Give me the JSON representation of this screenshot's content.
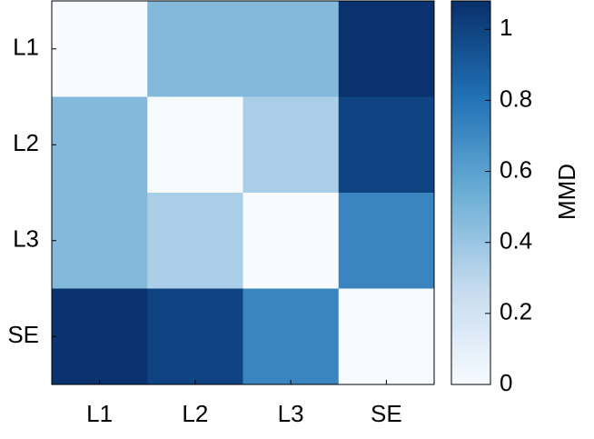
{
  "chart_data": {
    "type": "heatmap",
    "x_categories": [
      "L1",
      "L2",
      "L3",
      "SE"
    ],
    "y_categories": [
      "L1",
      "L2",
      "L3",
      "SE"
    ],
    "values": [
      [
        0,
        0.47,
        0.47,
        1.07
      ],
      [
        0.47,
        0,
        0.35,
        1.0
      ],
      [
        0.47,
        0.35,
        0,
        0.72
      ],
      [
        1.07,
        1.0,
        0.72,
        0
      ]
    ],
    "zlim": [
      0,
      1.08
    ],
    "zticks": [
      0,
      0.2,
      0.4,
      0.6,
      0.8,
      1
    ],
    "colorbar_label": "MMD",
    "colormap": [
      "#f7fbff",
      "#c6dbef",
      "#6baed6",
      "#2171b5",
      "#08306b"
    ]
  }
}
